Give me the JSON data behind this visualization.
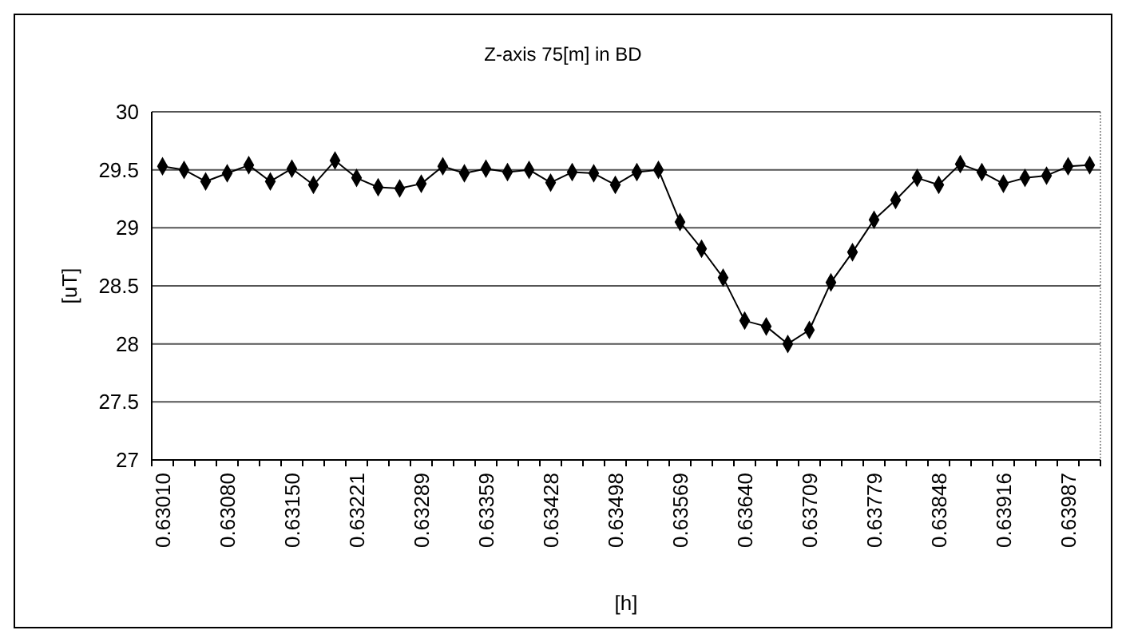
{
  "chart_data": {
    "type": "line",
    "title": "Z-axis 75[m] in BD",
    "xlabel": "[h]",
    "ylabel": "[uT]",
    "categories": [
      "0.63010",
      null,
      null,
      "0.63080",
      null,
      null,
      "0.63150",
      null,
      null,
      "0.63221",
      null,
      null,
      "0.63289",
      null,
      null,
      "0.63359",
      null,
      null,
      "0.63428",
      null,
      null,
      "0.63498",
      null,
      null,
      "0.63569",
      null,
      null,
      "0.63640",
      null,
      null,
      "0.63709",
      null,
      null,
      "0.63779",
      null,
      null,
      "0.63848",
      null,
      null,
      "0.63916",
      null,
      null,
      "0.63987",
      null
    ],
    "series": [
      {
        "color": "#000000",
        "values": [
          29.53,
          29.5,
          29.4,
          29.47,
          29.54,
          29.4,
          29.51,
          29.37,
          29.58,
          29.43,
          29.35,
          29.34,
          29.38,
          29.53,
          29.47,
          29.51,
          29.48,
          29.5,
          29.39,
          29.48,
          29.47,
          29.37,
          29.48,
          29.5,
          29.05,
          28.82,
          28.57,
          28.2,
          28.15,
          28.0,
          28.12,
          28.53,
          28.79,
          29.07,
          29.24,
          29.43,
          29.37,
          29.55,
          29.48,
          29.38,
          29.43,
          29.45,
          29.53,
          29.54
        ]
      }
    ],
    "ylim": [
      27,
      30
    ],
    "yticks": [
      27,
      27.5,
      28,
      28.5,
      29,
      29.5,
      30
    ],
    "grid": "y",
    "marker": "diamond",
    "line_style": "solid"
  }
}
